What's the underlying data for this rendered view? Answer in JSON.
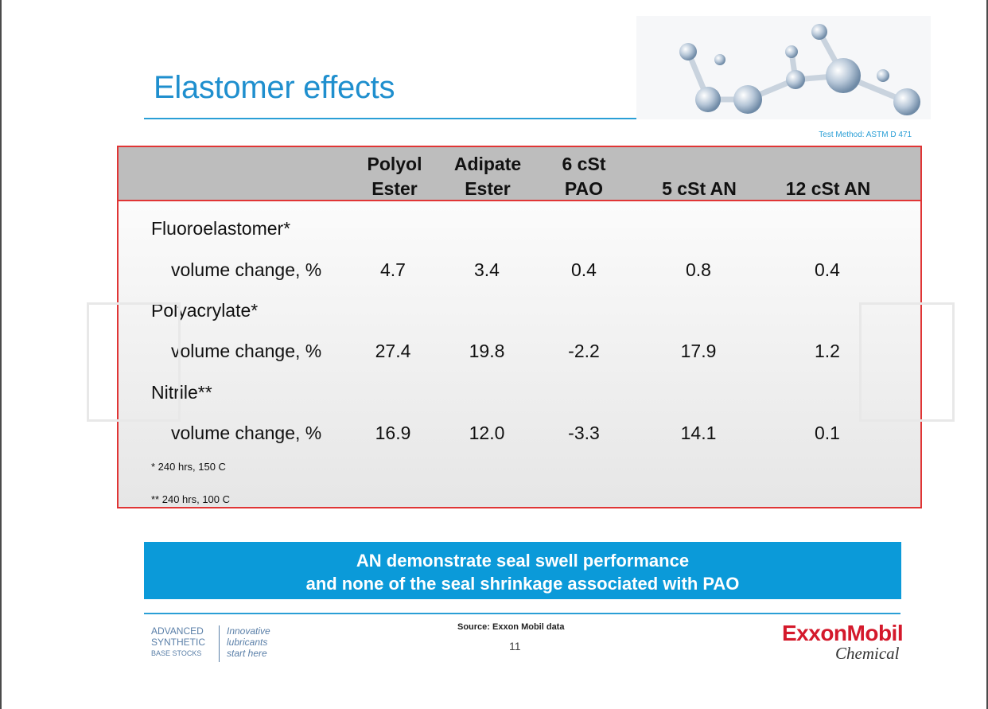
{
  "slide": {
    "title": "Elastomer effects",
    "test_method": "Test Method: ASTM D 471"
  },
  "table": {
    "columns": [
      {
        "line1": "Polyol",
        "line2": "Ester"
      },
      {
        "line1": "Adipate",
        "line2": "Ester"
      },
      {
        "line1": "6 cSt",
        "line2": "PAO"
      },
      {
        "line1": "",
        "line2": "5 cSt AN"
      },
      {
        "line1": "",
        "line2": "12 cSt AN"
      }
    ],
    "groups": [
      {
        "name": "Fluoroelastomer*",
        "row_label": "volume change, %",
        "values": [
          "4.7",
          "3.4",
          "0.4",
          "0.8",
          "0.4"
        ]
      },
      {
        "name": "Polyacrylate*",
        "row_label": "volume change, %",
        "values": [
          "27.4",
          "19.8",
          "-2.2",
          "17.9",
          "1.2"
        ]
      },
      {
        "name": "Nitrile**",
        "row_label": "volume change, %",
        "values": [
          "16.9",
          "12.0",
          "-3.3",
          "14.1",
          "0.1"
        ]
      }
    ],
    "footnotes": [
      "* 240 hrs, 150 C",
      "** 240 hrs, 100 C"
    ]
  },
  "callout": {
    "line1": "AN demonstrate seal swell performance",
    "line2": "and none of the seal shrinkage associated with PAO"
  },
  "footer": {
    "brand_left": [
      "ADVANCED",
      "SYNTHETIC",
      "BASE STOCKS"
    ],
    "brand_right": [
      "Innovative",
      "lubricants",
      "start here"
    ],
    "source": "Source: Exxon Mobil data",
    "page_number": "11",
    "logo_text": "ExxonMobil",
    "logo_sub": "Chemical"
  },
  "colors": {
    "title_blue": "#1f8fce",
    "table_border": "#e03535",
    "header_gray": "#bdbdbd",
    "callout_blue": "#0b9ad9",
    "exxon_red": "#d4192b"
  }
}
